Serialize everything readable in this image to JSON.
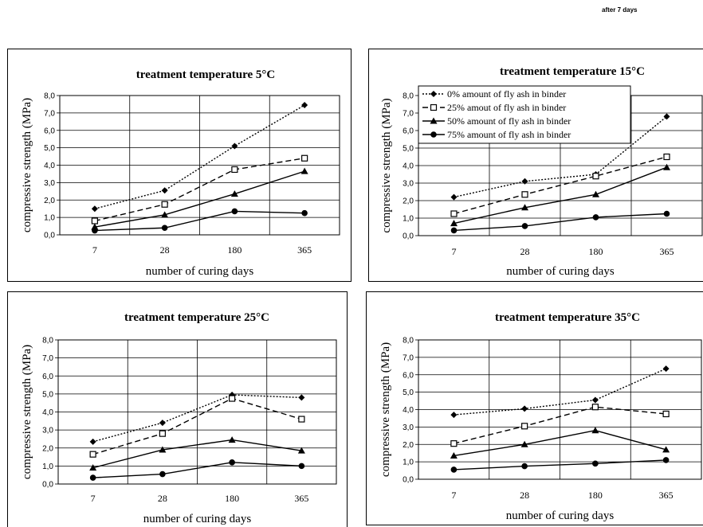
{
  "header_note": "after 7 days",
  "chart_data": [
    {
      "type": "line",
      "title": "treatment temperature 5°C",
      "xlabel": "number of curing days",
      "ylabel": "compressive strength (MPa)",
      "categories": [
        "7",
        "28",
        "180",
        "365"
      ],
      "ylim": [
        0,
        8
      ],
      "yticks": [
        "0,0",
        "1,0",
        "2,0",
        "3,0",
        "4,0",
        "5,0",
        "6,0",
        "7,0",
        "8,0"
      ],
      "grid": true,
      "series": [
        {
          "name": "0% amount of fly ash in binder",
          "values": [
            1.5,
            2.55,
            5.1,
            7.45
          ],
          "marker": "diamond",
          "dash": "dot"
        },
        {
          "name": "25% amout of fly ash in binder",
          "values": [
            0.8,
            1.75,
            3.75,
            4.4
          ],
          "marker": "square",
          "dash": "dash"
        },
        {
          "name": "50% amount of fly ash in binder",
          "values": [
            0.45,
            1.15,
            2.35,
            3.65
          ],
          "marker": "triangle",
          "dash": "solid"
        },
        {
          "name": "75% amount of fly ash in binder",
          "values": [
            0.25,
            0.4,
            1.35,
            1.25
          ],
          "marker": "circle",
          "dash": "solid"
        }
      ]
    },
    {
      "type": "line",
      "title": "treatment temperature 15°C",
      "xlabel": "number of curing days",
      "ylabel": "compressive strength (MPa)",
      "categories": [
        "7",
        "28",
        "180",
        "365"
      ],
      "ylim": [
        0,
        8
      ],
      "yticks": [
        "0,0",
        "1,0",
        "2,0",
        "3,0",
        "4,0",
        "5,0",
        "6,0",
        "7,0",
        "8,0"
      ],
      "grid": true,
      "legend": "top-left",
      "series": [
        {
          "name": "0% amount of fly ash in binder",
          "values": [
            2.2,
            3.1,
            3.5,
            6.8
          ],
          "marker": "diamond",
          "dash": "dot"
        },
        {
          "name": "25% amout of fly ash in binder",
          "values": [
            1.25,
            2.35,
            3.4,
            4.5
          ],
          "marker": "square",
          "dash": "dash"
        },
        {
          "name": "50% amount of fly ash in binder",
          "values": [
            0.7,
            1.6,
            2.35,
            3.9
          ],
          "marker": "triangle",
          "dash": "solid"
        },
        {
          "name": "75% amount of fly ash in binder",
          "values": [
            0.3,
            0.55,
            1.05,
            1.25
          ],
          "marker": "circle",
          "dash": "solid"
        }
      ]
    },
    {
      "type": "line",
      "title": "treatment temperature 25°C",
      "xlabel": "number of curing days",
      "ylabel": "compressive strength (MPa)",
      "categories": [
        "7",
        "28",
        "180",
        "365"
      ],
      "ylim": [
        0,
        8
      ],
      "yticks": [
        "0,0",
        "1,0",
        "2,0",
        "3,0",
        "4,0",
        "5,0",
        "6,0",
        "7,0",
        "8,0"
      ],
      "grid": true,
      "series": [
        {
          "name": "0% amount of fly ash in binder",
          "values": [
            2.35,
            3.4,
            4.95,
            4.8
          ],
          "marker": "diamond",
          "dash": "dot"
        },
        {
          "name": "25% amout of fly ash in binder",
          "values": [
            1.65,
            2.8,
            4.75,
            3.6
          ],
          "marker": "square",
          "dash": "dash"
        },
        {
          "name": "50% amount of fly ash in binder",
          "values": [
            0.9,
            1.9,
            2.45,
            1.85
          ],
          "marker": "triangle",
          "dash": "solid"
        },
        {
          "name": "75% amount of fly ash in binder",
          "values": [
            0.35,
            0.55,
            1.2,
            1.0
          ],
          "marker": "circle",
          "dash": "solid"
        }
      ]
    },
    {
      "type": "line",
      "title": "treatment temperature 35°C",
      "xlabel": "number of curing days",
      "ylabel": "compressive strength (MPa)",
      "categories": [
        "7",
        "28",
        "180",
        "365"
      ],
      "ylim": [
        0,
        8
      ],
      "yticks": [
        "0,0",
        "1,0",
        "2,0",
        "3,0",
        "4,0",
        "5,0",
        "6,0",
        "7,0",
        "8,0"
      ],
      "grid": true,
      "series": [
        {
          "name": "0% amount of fly ash in binder",
          "values": [
            3.7,
            4.05,
            4.55,
            6.35
          ],
          "marker": "diamond",
          "dash": "dot"
        },
        {
          "name": "25% amout of fly ash in binder",
          "values": [
            2.05,
            3.05,
            4.15,
            3.75
          ],
          "marker": "square",
          "dash": "dash"
        },
        {
          "name": "50% amount of fly ash in binder",
          "values": [
            1.35,
            2.0,
            2.8,
            1.7
          ],
          "marker": "triangle",
          "dash": "solid"
        },
        {
          "name": "75% amount of fly ash in binder",
          "values": [
            0.55,
            0.75,
            0.9,
            1.1
          ],
          "marker": "circle",
          "dash": "solid"
        }
      ]
    }
  ]
}
